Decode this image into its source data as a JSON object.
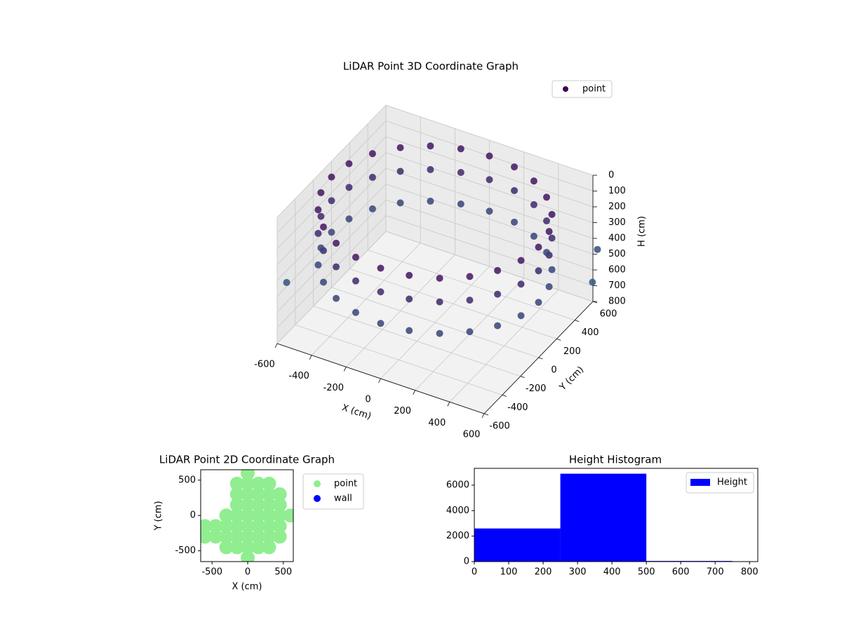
{
  "chart_data": [
    {
      "type": "scatter3d",
      "title": "LiDAR Point 3D Coordinate Graph",
      "xlabel": "X (cm)",
      "ylabel": "Y (cm)",
      "zlabel": "H (cm)",
      "xlim": [
        -600,
        600
      ],
      "ylim": [
        -600,
        600
      ],
      "zlim": [
        0,
        800
      ],
      "z_inverted": true,
      "xticks": [
        -600,
        -400,
        -200,
        0,
        200,
        400,
        600
      ],
      "yticks": [
        -600,
        -400,
        -200,
        0,
        200,
        400,
        600
      ],
      "zticks": [
        0,
        100,
        200,
        300,
        400,
        500,
        600,
        700,
        800
      ],
      "grid": true,
      "legend": "upper right",
      "cmap_colors": [
        "#46085c",
        "#2c728e"
      ],
      "series": [
        {
          "name": "point",
          "color": "#440154",
          "x": [
            600,
            580,
            520,
            424,
            300,
            155,
            0,
            -155,
            -300,
            -424,
            -520,
            -580,
            -600,
            -580,
            -520,
            -424,
            -300,
            -155,
            0,
            155,
            300,
            424,
            520,
            580,
            600,
            580,
            520,
            424,
            300,
            155,
            0,
            -155,
            -300,
            -424,
            -520,
            -580,
            -600,
            -580,
            -520,
            -424,
            -300,
            -155,
            0,
            155,
            300,
            424,
            520,
            580,
            600,
            580,
            520,
            424,
            300,
            155,
            0,
            -155,
            -300,
            -424,
            -520,
            -580,
            -600,
            -580,
            -520,
            -424,
            -300,
            -155,
            0,
            155,
            300,
            424,
            520,
            580,
            -650,
            600,
            650
          ],
          "y": [
            0,
            155,
            300,
            424,
            520,
            580,
            600,
            580,
            520,
            424,
            300,
            155,
            0,
            -155,
            -300,
            -424,
            -520,
            -580,
            -600,
            -580,
            -520,
            -424,
            -300,
            -155,
            0,
            155,
            300,
            424,
            520,
            580,
            600,
            580,
            520,
            424,
            300,
            155,
            0,
            -155,
            -300,
            -424,
            -520,
            -580,
            -600,
            -580,
            -520,
            -424,
            -300,
            -155,
            0,
            155,
            300,
            424,
            520,
            580,
            600,
            580,
            520,
            424,
            300,
            155,
            0,
            -155,
            -300,
            -424,
            -520,
            -580,
            -600,
            -580,
            -520,
            -424,
            -300,
            -155,
            -400,
            650,
            500
          ],
          "h": [
            100,
            100,
            100,
            100,
            100,
            100,
            100,
            100,
            100,
            100,
            100,
            100,
            100,
            100,
            100,
            100,
            100,
            100,
            100,
            100,
            100,
            100,
            100,
            100,
            250,
            250,
            250,
            250,
            250,
            250,
            250,
            250,
            250,
            250,
            250,
            250,
            250,
            250,
            250,
            250,
            250,
            250,
            250,
            250,
            250,
            250,
            250,
            250,
            450,
            450,
            450,
            450,
            450,
            450,
            450,
            450,
            450,
            450,
            450,
            450,
            450,
            450,
            450,
            450,
            450,
            450,
            450,
            450,
            450,
            450,
            450,
            450,
            550,
            500,
            600
          ]
        }
      ]
    },
    {
      "type": "scatter",
      "title": "LiDAR Point 2D Coordinate Graph",
      "xlabel": "X (cm)",
      "ylabel": "Y (cm)",
      "xlim": [
        -660,
        640
      ],
      "ylim": [
        -653,
        647
      ],
      "xticks": [
        -500,
        0,
        500
      ],
      "yticks": [
        -500,
        0,
        500
      ],
      "legend": "outside upper right",
      "series": [
        {
          "name": "point",
          "color": "#90ee90",
          "x": [
            -600,
            -600,
            -450,
            -450,
            -300,
            -300,
            -300,
            -300,
            -150,
            -150,
            -150,
            -150,
            -150,
            -150,
            -150,
            0,
            0,
            0,
            0,
            0,
            0,
            0,
            0,
            0,
            150,
            150,
            150,
            150,
            150,
            150,
            150,
            300,
            300,
            300,
            300,
            300,
            300,
            300,
            450,
            450,
            450,
            450,
            450,
            600
          ],
          "y": [
            -150,
            -300,
            -300,
            -150,
            -450,
            -300,
            -150,
            0,
            -450,
            -300,
            -150,
            0,
            150,
            300,
            450,
            -600,
            -450,
            -300,
            -150,
            0,
            150,
            300,
            450,
            600,
            -450,
            -300,
            -150,
            0,
            150,
            300,
            450,
            -450,
            -300,
            -150,
            0,
            150,
            300,
            450,
            -300,
            -150,
            0,
            150,
            300,
            0
          ]
        },
        {
          "name": "wall",
          "color": "#0000ff",
          "x": [],
          "y": []
        }
      ]
    },
    {
      "type": "histogram",
      "title": "Height Histogram",
      "legend": "upper right",
      "xlim": [
        0,
        824
      ],
      "ylim": [
        0,
        7320
      ],
      "xticks": [
        0,
        100,
        200,
        300,
        400,
        500,
        600,
        700,
        800
      ],
      "yticks": [
        0,
        2000,
        4000,
        6000
      ],
      "series": [
        {
          "name": "Height",
          "color": "#0000ff",
          "bins": [
            0,
            250,
            500,
            750
          ],
          "values": [
            2600,
            6900,
            50
          ]
        }
      ]
    }
  ]
}
